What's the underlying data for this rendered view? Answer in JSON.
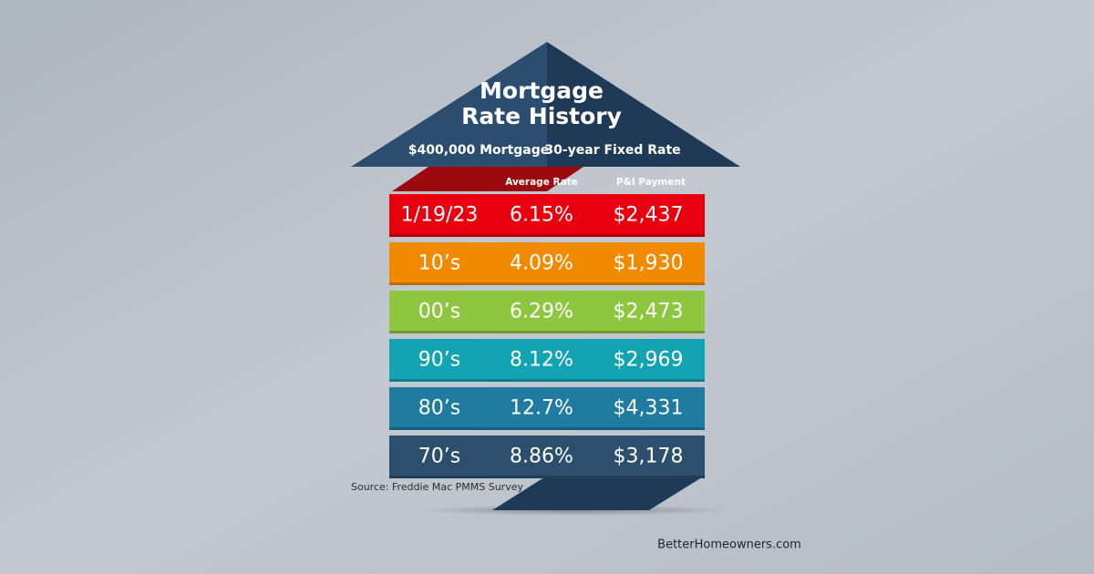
{
  "header": {
    "title_lines": [
      "Mortgage",
      "Rate History"
    ],
    "subtitle_parts": [
      "$400,000 Mortgage",
      "30-year Fixed Rate"
    ]
  },
  "table": {
    "columns": [
      "Average Rate",
      "P&I Payment"
    ],
    "rows": [
      [
        "1/19/23",
        "6.15%",
        "$2,437"
      ],
      [
        "10’s",
        "4.09%",
        "$1,930"
      ],
      [
        "00’s",
        "6.29%",
        "$2,473"
      ],
      [
        "90’s",
        "8.12%",
        "$2,969"
      ],
      [
        "80’s",
        "12.7%",
        "$4,331"
      ],
      [
        "70’s",
        "8.86%",
        "$3,178"
      ]
    ]
  },
  "source": "Source: Freddie Mac PMMS Survey",
  "footer": "BetterHomeowners.com"
}
